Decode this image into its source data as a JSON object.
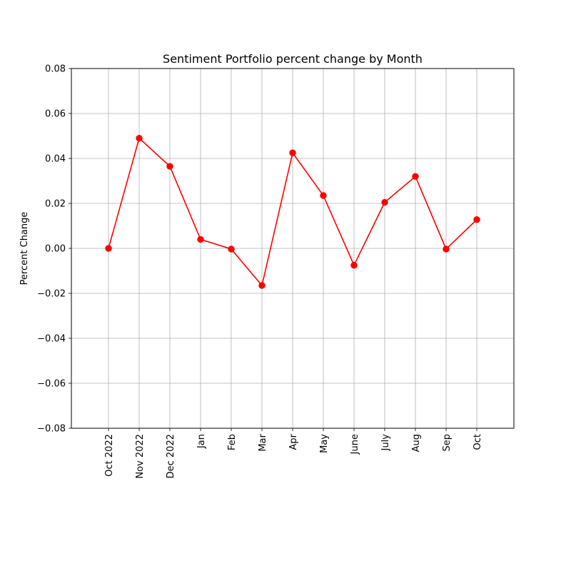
{
  "chart_data": {
    "type": "line",
    "title": "Sentiment Portfolio percent change by Month",
    "xlabel": "",
    "ylabel": "Percent Change",
    "categories": [
      "Oct 2022",
      "Nov 2022",
      "Dec 2022",
      "Jan",
      "Feb",
      "Mar",
      "Apr",
      "May",
      "June",
      "July",
      "Aug",
      "Sep",
      "Oct"
    ],
    "series": [
      {
        "values": [
          0.0,
          0.049,
          0.0365,
          0.004,
          -0.0003,
          -0.0165,
          0.0425,
          0.0235,
          -0.0075,
          0.0205,
          0.032,
          -0.0003,
          0.0128
        ],
        "color": "#ff0000",
        "marker": "circle"
      }
    ],
    "ylim": [
      -0.08,
      0.08
    ],
    "yticks": [
      -0.08,
      -0.06,
      -0.04,
      -0.02,
      0.0,
      0.02,
      0.04,
      0.06,
      0.08
    ],
    "ytick_labels": [
      "−0.08",
      "−0.06",
      "−0.04",
      "−0.02",
      "0.00",
      "0.02",
      "0.04",
      "0.06",
      "0.08"
    ],
    "grid": true,
    "legend": false
  }
}
